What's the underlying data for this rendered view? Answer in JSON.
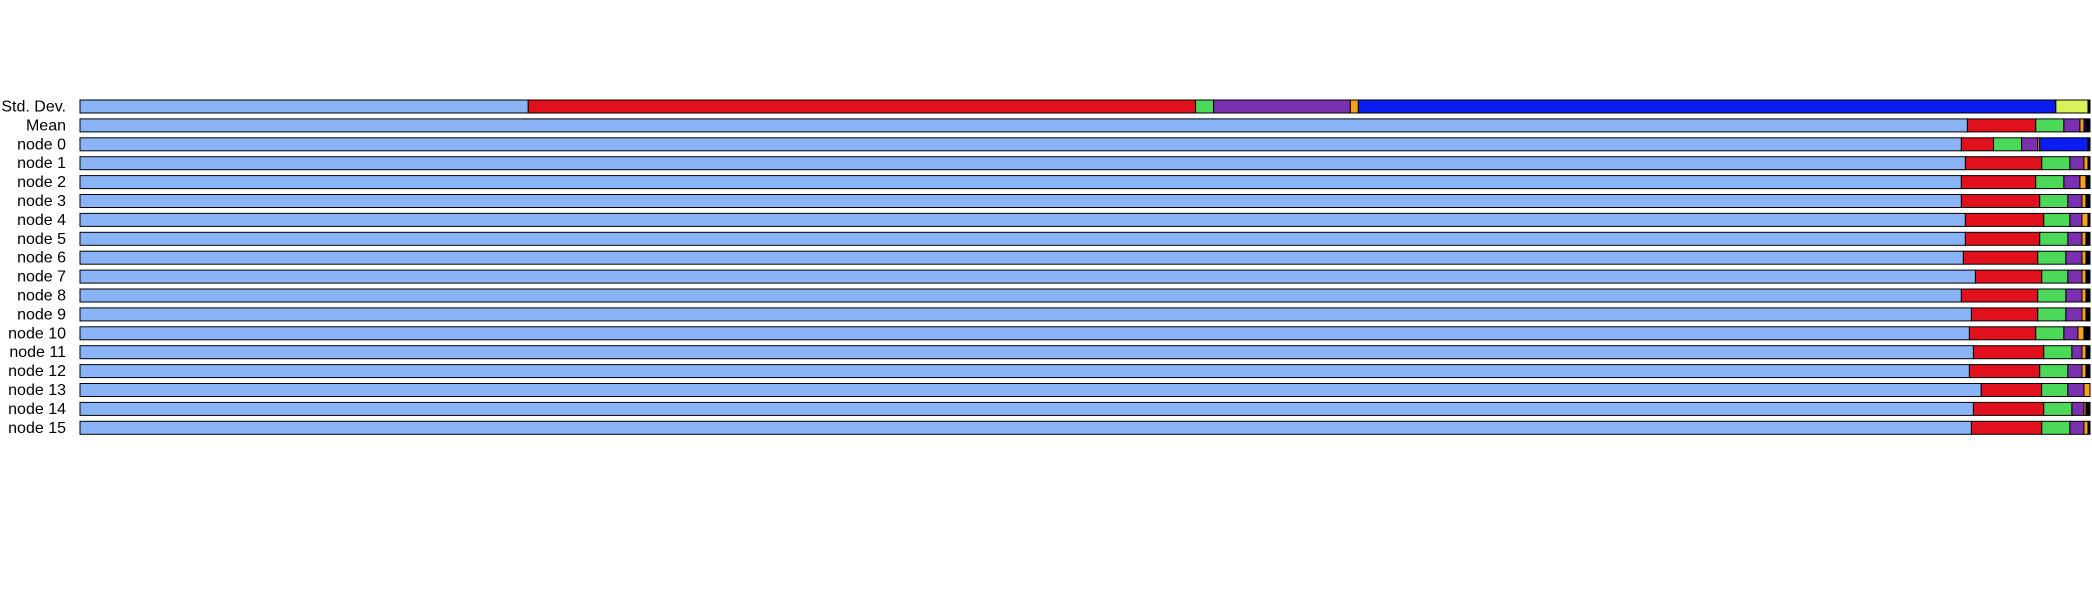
{
  "chart_data": {
    "type": "bar",
    "orientation": "horizontal",
    "stacked": "normalized",
    "title": "",
    "xlabel": "",
    "ylabel": "",
    "grid": false,
    "legend": "none",
    "categories": [
      "Std. Dev.",
      "Mean",
      "node 0",
      "node 1",
      "node 2",
      "node 3",
      "node 4",
      "node 5",
      "node 6",
      "node 7",
      "node 8",
      "node 9",
      "node 10",
      "node 11",
      "node 12",
      "node 13",
      "node 14",
      "node 15"
    ],
    "series": [
      {
        "color": "#8bb4f7",
        "values": [
          22.3,
          93.9,
          93.6,
          93.8,
          93.6,
          93.6,
          93.8,
          93.8,
          93.7,
          94.3,
          93.6,
          94.1,
          94.0,
          94.2,
          94.0,
          94.4,
          94.2,
          94.1
        ]
      },
      {
        "color": "#e0101c",
        "values": [
          33.2,
          3.4,
          1.6,
          3.8,
          3.7,
          3.9,
          3.9,
          3.7,
          3.7,
          3.3,
          3.8,
          3.3,
          3.3,
          3.5,
          3.5,
          3.0,
          3.5,
          3.5
        ]
      },
      {
        "color": "#4cd95a",
        "values": [
          0.9,
          1.4,
          1.4,
          1.4,
          1.4,
          1.4,
          1.3,
          1.4,
          1.4,
          1.3,
          1.4,
          1.4,
          1.4,
          1.4,
          1.4,
          1.3,
          1.4,
          1.4
        ]
      },
      {
        "color": "#7b30b0",
        "values": [
          6.8,
          0.8,
          0.8,
          0.7,
          0.8,
          0.7,
          0.6,
          0.7,
          0.8,
          0.7,
          0.8,
          0.8,
          0.7,
          0.5,
          0.7,
          0.8,
          0.6,
          0.7
        ]
      },
      {
        "color": "#f2a31a",
        "values": [
          0.4,
          0.2,
          0.1,
          0.2,
          0.3,
          0.2,
          0.3,
          0.2,
          0.2,
          0.2,
          0.2,
          0.2,
          0.3,
          0.2,
          0.2,
          0.3,
          0.1,
          0.2
        ]
      },
      {
        "color": "#0a1cf0",
        "values": [
          34.7,
          0.1,
          2.4,
          0.0,
          0.0,
          0.0,
          0.0,
          0.0,
          0.0,
          0.0,
          0.0,
          0.0,
          0.0,
          0.0,
          0.0,
          0.0,
          0.0,
          0.0
        ]
      },
      {
        "color": "#d8f25a",
        "values": [
          1.6,
          0.0,
          0.0,
          0.0,
          0.0,
          0.0,
          0.0,
          0.0,
          0.0,
          0.0,
          0.0,
          0.0,
          0.0,
          0.0,
          0.0,
          0.0,
          0.0,
          0.0
        ]
      },
      {
        "color": "#000000",
        "values": [
          0.1,
          0.2,
          0.1,
          0.1,
          0.2,
          0.2,
          0.1,
          0.2,
          0.2,
          0.2,
          0.2,
          0.2,
          0.3,
          0.2,
          0.2,
          0.0,
          0.2,
          0.1
        ]
      }
    ]
  }
}
